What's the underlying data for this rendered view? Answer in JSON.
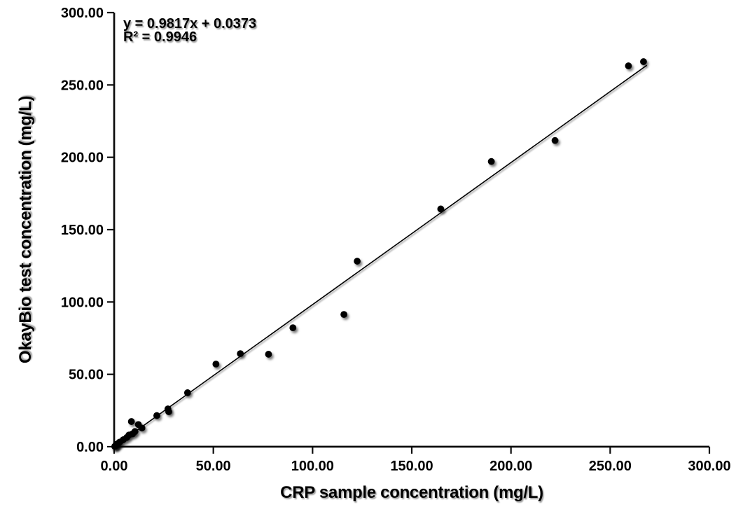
{
  "chart_data": {
    "type": "scatter",
    "title": "",
    "xlabel": "CRP sample concentration (mg/L)",
    "ylabel": "OkayBio test concentration (mg/L)",
    "xlim": [
      0,
      300
    ],
    "ylim": [
      0,
      300
    ],
    "x_tick_values": [
      0,
      50,
      100,
      150,
      200,
      250,
      300
    ],
    "y_tick_values": [
      0,
      50,
      100,
      150,
      200,
      250,
      300
    ],
    "x_tick_labels": [
      "0.00",
      "50.00",
      "100.00",
      "150.00",
      "200.00",
      "250.00",
      "300.00"
    ],
    "y_tick_labels": [
      "0.00",
      "50.00",
      "100.00",
      "150.00",
      "200.00",
      "250.00",
      "300.00"
    ],
    "grid": false,
    "legend": false,
    "annotation": {
      "equation": "y = 0.9817x + 0.0373",
      "r_squared": "R² = 0.9946"
    },
    "trendline": {
      "slope": 0.9817,
      "intercept": 0.0373,
      "x_start": 0,
      "x_end": 268.5
    },
    "points": [
      [
        0.3,
        0.2
      ],
      [
        0.5,
        0.4
      ],
      [
        0.8,
        0.8
      ],
      [
        1.1,
        1.6
      ],
      [
        2.0,
        2.2
      ],
      [
        2.8,
        3.2
      ],
      [
        4.6,
        4.8
      ],
      [
        6.4,
        6.4
      ],
      [
        7.5,
        8.1
      ],
      [
        8.7,
        17.4
      ],
      [
        9.3,
        8.9
      ],
      [
        10.5,
        10.5
      ],
      [
        12.2,
        15.3
      ],
      [
        14.0,
        12.9
      ],
      [
        21.5,
        21.5
      ],
      [
        27.1,
        26.1
      ],
      [
        27.5,
        24.2
      ],
      [
        37.0,
        37.3
      ],
      [
        51.3,
        57.1
      ],
      [
        63.6,
        64.3
      ],
      [
        77.8,
        63.9
      ],
      [
        90.1,
        82.2
      ],
      [
        115.8,
        91.4
      ],
      [
        122.5,
        128.2
      ],
      [
        164.6,
        164.3
      ],
      [
        190.1,
        197.1
      ],
      [
        222.2,
        211.6
      ],
      [
        259.2,
        263.2
      ],
      [
        266.8,
        266.1
      ]
    ],
    "marker": {
      "shape": "circle",
      "radius": 4.9
    },
    "colors": {
      "marker": "#000000",
      "trendline": "#000000",
      "axis": "#0d0d0d",
      "text": "#000000",
      "background": "#ffffff"
    }
  }
}
